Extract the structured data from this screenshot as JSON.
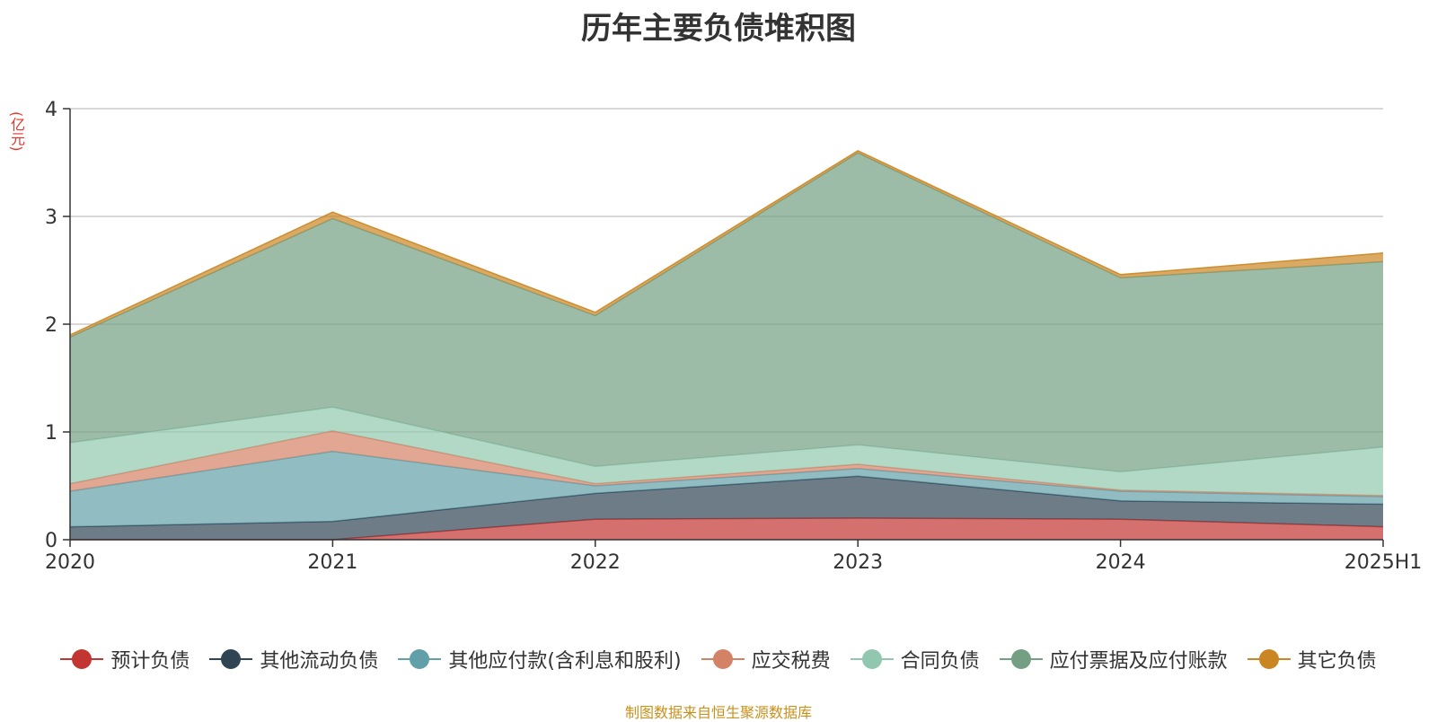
{
  "chart_data": {
    "type": "area",
    "stacked": true,
    "title": "历年主要负债堆积图",
    "unit_label": "(亿元)",
    "categories": [
      "2020",
      "2021",
      "2022",
      "2023",
      "2024",
      "2025H1"
    ],
    "ylim": [
      0,
      4
    ],
    "yticks": [
      "0",
      "1",
      "2",
      "3",
      "4"
    ],
    "grid": true,
    "legend_position": "bottom",
    "series": [
      {
        "name": "预计负债",
        "color": "#c23531",
        "values": [
          0.0,
          0.0,
          0.19,
          0.2,
          0.19,
          0.12
        ]
      },
      {
        "name": "其他流动负债",
        "color": "#2f4554",
        "values": [
          0.12,
          0.17,
          0.24,
          0.39,
          0.17,
          0.21
        ]
      },
      {
        "name": "其他应付款(含利息和股利)",
        "color": "#61a0a8",
        "values": [
          0.33,
          0.65,
          0.07,
          0.07,
          0.09,
          0.07
        ]
      },
      {
        "name": "应交税费",
        "color": "#d48265",
        "values": [
          0.07,
          0.19,
          0.02,
          0.04,
          0.01,
          0.01
        ]
      },
      {
        "name": "合同负债",
        "color": "#91c7ae",
        "values": [
          0.38,
          0.22,
          0.16,
          0.18,
          0.17,
          0.45
        ]
      },
      {
        "name": "应付票据及应付账款",
        "color": "#749f83",
        "values": [
          0.98,
          1.75,
          1.4,
          2.71,
          1.8,
          1.72
        ]
      },
      {
        "name": "其它负债",
        "color": "#ca8622",
        "values": [
          0.02,
          0.06,
          0.03,
          0.02,
          0.03,
          0.08
        ]
      }
    ]
  },
  "source_note": "制图数据来自恒生聚源数据库"
}
